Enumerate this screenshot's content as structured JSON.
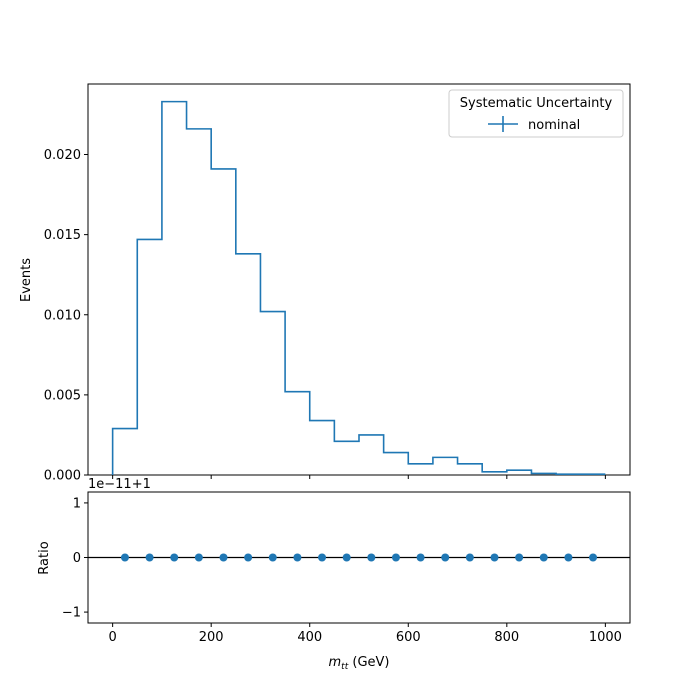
{
  "chart_data": [
    {
      "type": "line",
      "style": "step-histogram",
      "ylabel": "Events",
      "xlim": [
        -50,
        1050
      ],
      "ylim": [
        0,
        0.0244
      ],
      "bin_edges": [
        0,
        50,
        100,
        150,
        200,
        250,
        300,
        350,
        400,
        450,
        500,
        550,
        600,
        650,
        700,
        750,
        800,
        850,
        900,
        950,
        1000
      ],
      "series": [
        {
          "name": "nominal",
          "color": "#1f77b4",
          "values": [
            0.0029,
            0.0147,
            0.0233,
            0.0216,
            0.0191,
            0.0138,
            0.0102,
            0.0052,
            0.0034,
            0.0021,
            0.0025,
            0.0014,
            0.0007,
            0.0011,
            0.0007,
            0.0002,
            0.0003,
            0.0001,
            5e-05,
            5e-05
          ]
        }
      ],
      "y_ticks": [
        {
          "value": 0.0,
          "label": "0.000"
        },
        {
          "value": 0.005,
          "label": "0.005"
        },
        {
          "value": 0.01,
          "label": "0.010"
        },
        {
          "value": 0.015,
          "label": "0.015"
        },
        {
          "value": 0.02,
          "label": "0.020"
        }
      ],
      "legend": {
        "title": "Systematic Uncertainty",
        "entries": [
          "nominal"
        ],
        "placement": "top-right"
      },
      "grid": false
    },
    {
      "type": "scatter",
      "ylabel": "Ratio",
      "xlabel_main": "m",
      "xlabel_sub": "tt",
      "xlabel_unit": " (GeV)",
      "offset_label": "1e−11+1",
      "xlim": [
        -50,
        1050
      ],
      "ylim": [
        -1.2,
        1.2
      ],
      "series": [
        {
          "name": "",
          "color": "#1f77b4",
          "x": [
            25,
            75,
            125,
            175,
            225,
            275,
            325,
            375,
            425,
            475,
            525,
            575,
            625,
            675,
            725,
            775,
            825,
            875,
            925,
            975
          ],
          "y": [
            0,
            0,
            0,
            0,
            0,
            0,
            0,
            0,
            0,
            0,
            0,
            0,
            0,
            0,
            0,
            0,
            0,
            0,
            0,
            0
          ]
        }
      ],
      "reference_line": 0,
      "x_ticks": [
        {
          "value": 0,
          "label": "0"
        },
        {
          "value": 200,
          "label": "200"
        },
        {
          "value": 400,
          "label": "400"
        },
        {
          "value": 600,
          "label": "600"
        },
        {
          "value": 800,
          "label": "800"
        },
        {
          "value": 1000,
          "label": "1000"
        }
      ],
      "y_ticks": [
        {
          "value": -1,
          "label": "−1"
        },
        {
          "value": 0,
          "label": "0"
        },
        {
          "value": 1,
          "label": "1"
        }
      ],
      "grid": false
    }
  ]
}
